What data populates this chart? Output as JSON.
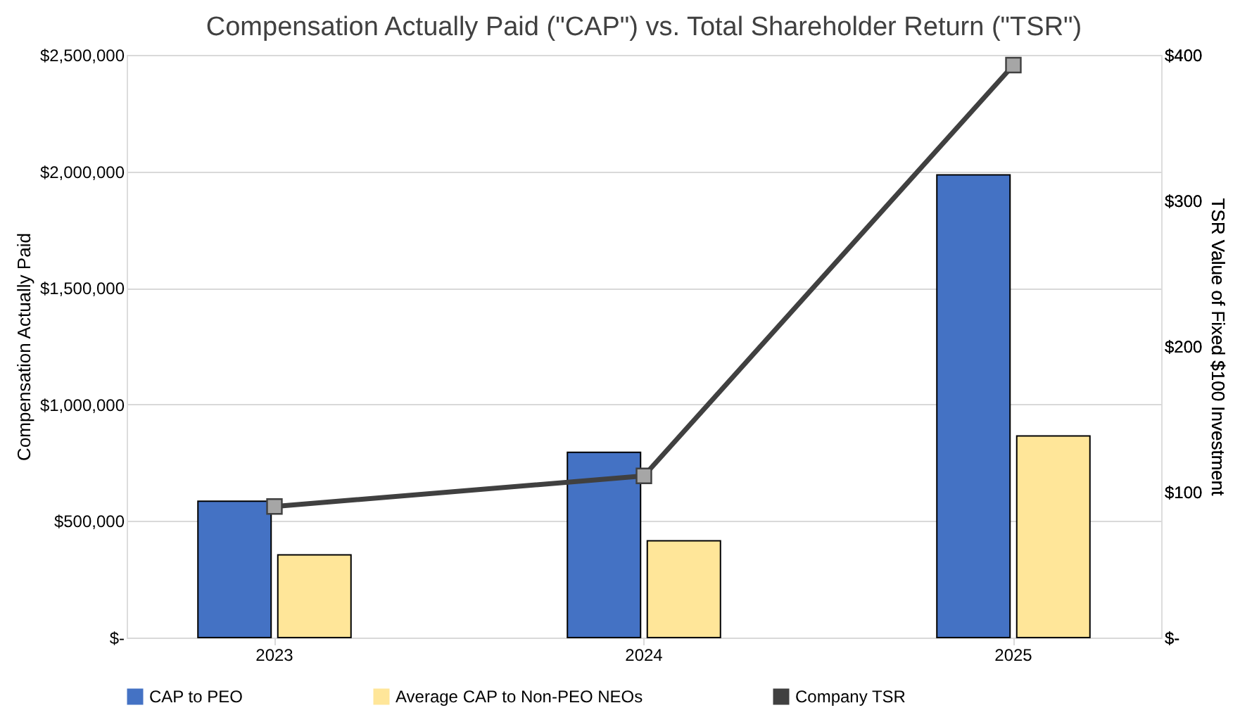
{
  "chart_data": {
    "type": "bar",
    "title": "Compensation Actually Paid (\"CAP\") vs. Total Shareholder Return (\"TSR\")",
    "ylabel": "Compensation Actually Paid",
    "y2label": "TSR Value of Fixed $100 Investment",
    "categories": [
      "2023",
      "2024",
      "2025"
    ],
    "series": [
      {
        "name": "CAP to PEO",
        "color": "#4472c4",
        "values": [
          585000,
          795000,
          1985000
        ]
      },
      {
        "name": "Average CAP to Non-PEO NEOs",
        "color": "#ffe699",
        "values": [
          355000,
          415000,
          865000
        ]
      },
      {
        "name": "Company TSR",
        "type": "line",
        "axis": "y2",
        "color": "#404040",
        "marker": "square",
        "values": [
          90,
          111,
          393
        ]
      }
    ],
    "ylim": [
      0,
      2500000
    ],
    "yticks": [
      {
        "value": 0,
        "label": "$-"
      },
      {
        "value": 500000,
        "label": "$500,000"
      },
      {
        "value": 1000000,
        "label": "$1,000,000"
      },
      {
        "value": 1500000,
        "label": "$1,500,000"
      },
      {
        "value": 2000000,
        "label": "$2,000,000"
      },
      {
        "value": 2500000,
        "label": "$2,500,000"
      }
    ],
    "y2lim": [
      0,
      400
    ],
    "y2ticks": [
      {
        "value": 0,
        "label": "$-"
      },
      {
        "value": 100,
        "label": "$100"
      },
      {
        "value": 200,
        "label": "$200"
      },
      {
        "value": 300,
        "label": "$300"
      },
      {
        "value": 400,
        "label": "$400"
      }
    ],
    "grid": "y",
    "legend": "bottom"
  }
}
